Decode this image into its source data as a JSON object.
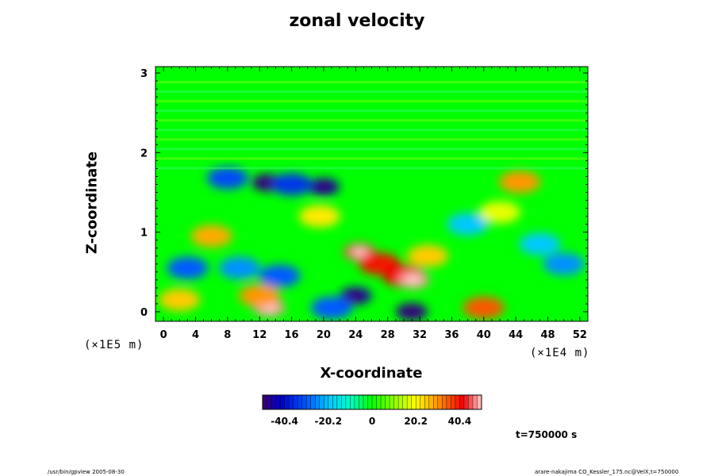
{
  "chart_data": {
    "type": "heatmap",
    "title": "zonal velocity",
    "xlabel": "X-coordinate",
    "ylabel": "Z-coordinate",
    "xlim": [
      -1,
      53
    ],
    "ylim": [
      -0.12,
      3.08
    ],
    "x_ticks": [
      "0",
      "4",
      "8",
      "12",
      "16",
      "20",
      "24",
      "28",
      "32",
      "36",
      "40",
      "44",
      "48",
      "52"
    ],
    "x_tick_values": [
      0,
      4,
      8,
      12,
      16,
      20,
      24,
      28,
      32,
      36,
      40,
      44,
      48,
      52
    ],
    "y_ticks": [
      "0",
      "1",
      "2",
      "3"
    ],
    "y_tick_values": [
      0,
      1,
      2,
      3
    ],
    "x_unit": "(×1E4 m)",
    "y_unit": "(×1E5 m)",
    "colorbar": {
      "min": -50.5,
      "max": 50.5,
      "ticks": [
        "-40.4",
        "-20.2",
        "0",
        "20.2",
        "40.4"
      ],
      "tick_values": [
        -40.4,
        -20.2,
        0,
        20.2,
        40.4
      ]
    },
    "features": [
      {
        "x": 13.2,
        "z": 0.05,
        "value": 48
      },
      {
        "x": 12.0,
        "z": 0.2,
        "value": 30
      },
      {
        "x": 24.5,
        "z": 0.75,
        "value": 45
      },
      {
        "x": 27.0,
        "z": 0.6,
        "value": 40
      },
      {
        "x": 30.0,
        "z": 0.45,
        "value": 42
      },
      {
        "x": 31.2,
        "z": 0.4,
        "value": 48
      },
      {
        "x": 33.0,
        "z": 0.7,
        "value": 25
      },
      {
        "x": 40.0,
        "z": 0.05,
        "value": 35
      },
      {
        "x": 44.5,
        "z": 1.63,
        "value": 30
      },
      {
        "x": 6.0,
        "z": 0.95,
        "value": 28
      },
      {
        "x": 2.0,
        "z": 0.15,
        "value": 25
      },
      {
        "x": 19.5,
        "z": 1.2,
        "value": 22
      },
      {
        "x": 13.0,
        "z": 1.62,
        "value": -48
      },
      {
        "x": 20.0,
        "z": 1.57,
        "value": -45
      },
      {
        "x": 8.0,
        "z": 1.68,
        "value": -32
      },
      {
        "x": 16.0,
        "z": 1.6,
        "value": -35
      },
      {
        "x": 3.0,
        "z": 0.55,
        "value": -30
      },
      {
        "x": 9.5,
        "z": 0.55,
        "value": -25
      },
      {
        "x": 14.5,
        "z": 0.45,
        "value": -30
      },
      {
        "x": 31.0,
        "z": 0.0,
        "value": -48
      },
      {
        "x": 24.0,
        "z": 0.2,
        "value": -45
      },
      {
        "x": 21.0,
        "z": 0.05,
        "value": -30
      },
      {
        "x": 50.0,
        "z": 0.6,
        "value": -25
      },
      {
        "x": 38.0,
        "z": 1.1,
        "value": -20
      },
      {
        "x": 47.0,
        "z": 0.85,
        "value": -20
      },
      {
        "x": 42.0,
        "z": 1.25,
        "value": 18
      }
    ]
  },
  "time_label": "t=750000 s",
  "footer_left": "/usr/bin/gpview 2005-08-30",
  "footer_right": "arare-nakajima CO_Kessler_175.nc@VelX,t=750000"
}
